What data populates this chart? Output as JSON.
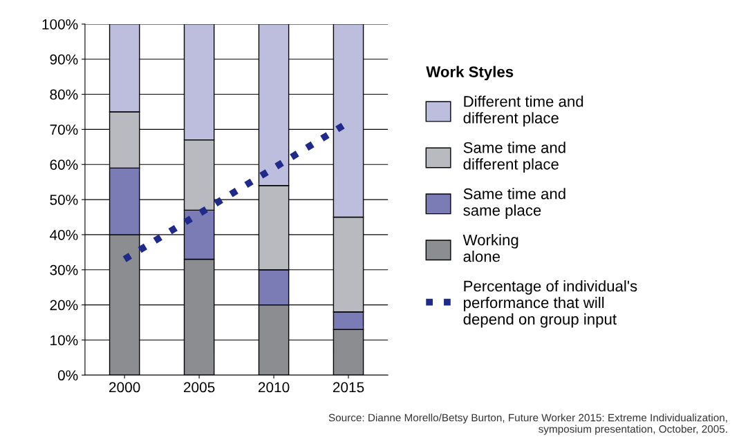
{
  "chart_data": {
    "type": "bar",
    "stacked": true,
    "categories": [
      "2000",
      "2005",
      "2010",
      "2015"
    ],
    "series": [
      {
        "name": "Working\nalone",
        "color": "#8c8d91",
        "values": [
          40,
          33,
          20,
          13
        ]
      },
      {
        "name": "Same time and\nsame place",
        "color": "#7b7bb5",
        "values": [
          19,
          14,
          10,
          5
        ]
      },
      {
        "name": "Same time and\ndifferent place",
        "color": "#b9b9c0",
        "values": [
          16,
          20,
          24,
          27
        ]
      },
      {
        "name": "Different time and\ndifferent place",
        "color": "#bdbddd",
        "values": [
          25,
          33,
          46,
          55
        ]
      },
      {
        "name": "Percentage of individual's\nperformance that will\ndepend on group input",
        "type": "line",
        "color": "#1f2a8a",
        "line_style": "dotted",
        "values": [
          33,
          46,
          59,
          72
        ]
      }
    ],
    "ylim": [
      0,
      100
    ],
    "yticks": [
      {
        "value": 0,
        "label": "0%"
      },
      {
        "value": 10,
        "label": "10%"
      },
      {
        "value": 20,
        "label": "20%"
      },
      {
        "value": 30,
        "label": "30%"
      },
      {
        "value": 40,
        "label": "40%"
      },
      {
        "value": 50,
        "label": "50%"
      },
      {
        "value": 60,
        "label": "60%"
      },
      {
        "value": 70,
        "label": "70%"
      },
      {
        "value": 80,
        "label": "80%"
      },
      {
        "value": 90,
        "label": "90%"
      },
      {
        "value": 100,
        "label": "100%"
      }
    ],
    "grid": "y",
    "legend": "right",
    "legend_title": "Work Styles",
    "annotations": [
      "Source: Dianne Morello/Betsy Burton, Future Worker 2015: Extreme Individualization,\nsymposium presentation, October, 2005."
    ]
  }
}
